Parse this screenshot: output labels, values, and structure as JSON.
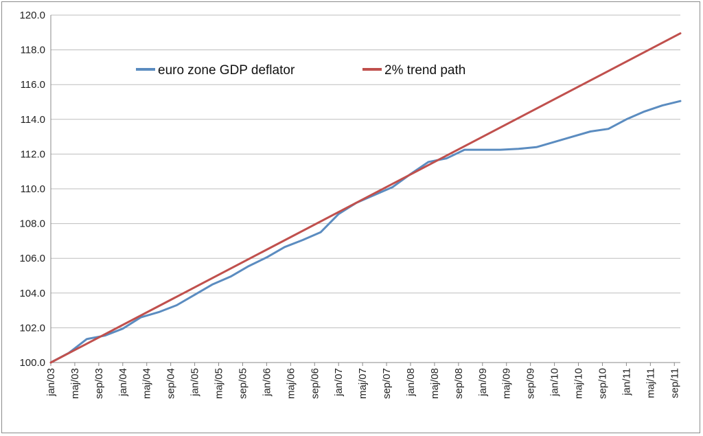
{
  "chart_data": {
    "type": "line",
    "title": "",
    "xlabel": "",
    "ylabel": "",
    "ylim": [
      100,
      120
    ],
    "y_ticks": [
      "100.0",
      "102.0",
      "104.0",
      "106.0",
      "108.0",
      "110.0",
      "112.0",
      "114.0",
      "116.0",
      "118.0",
      "120.0"
    ],
    "x_tick_labels": [
      "jan/03",
      "maj/03",
      "sep/03",
      "jan/04",
      "maj/04",
      "sep/04",
      "jan/05",
      "maj/05",
      "sep/05",
      "jan/06",
      "maj/06",
      "sep/06",
      "jan/07",
      "maj/07",
      "sep/07",
      "jan/08",
      "maj/08",
      "sep/08",
      "jan/09",
      "maj/09",
      "sep/09",
      "jan/10",
      "maj/10",
      "sep/10",
      "jan/11",
      "maj/11",
      "sep/11"
    ],
    "grid": "horizontal",
    "legend_position": "top-center",
    "colors": {
      "deflator": "#5b8cc0",
      "trend": "#c0504d"
    },
    "series": [
      {
        "name": "euro zone GDP deflator",
        "x": [
          "jan/03",
          "apr/03",
          "jul/03",
          "okt/03",
          "jan/04",
          "apr/04",
          "jul/04",
          "okt/04",
          "jan/05",
          "apr/05",
          "jul/05",
          "okt/05",
          "jan/06",
          "apr/06",
          "jul/06",
          "okt/06",
          "jan/07",
          "apr/07",
          "jul/07",
          "okt/07",
          "jan/08",
          "apr/08",
          "jul/08",
          "okt/08",
          "jan/09",
          "apr/09",
          "jul/09",
          "okt/09",
          "jan/10",
          "apr/10",
          "jul/10",
          "okt/10",
          "jan/11",
          "apr/11",
          "jul/11",
          "okt/11"
        ],
        "values": [
          100.0,
          100.55,
          101.35,
          101.55,
          101.95,
          102.6,
          102.9,
          103.3,
          103.9,
          104.5,
          104.95,
          105.55,
          106.05,
          106.65,
          107.05,
          107.5,
          108.55,
          109.2,
          109.65,
          110.1,
          110.85,
          111.55,
          111.75,
          112.25,
          112.25,
          112.25,
          112.3,
          112.4,
          112.7,
          113.0,
          113.3,
          113.45,
          114.0,
          114.45,
          114.8,
          115.05
        ]
      },
      {
        "name": "2% trend path",
        "x": [
          "jan/03",
          "okt/11"
        ],
        "values": [
          100.0,
          118.95
        ]
      }
    ]
  }
}
